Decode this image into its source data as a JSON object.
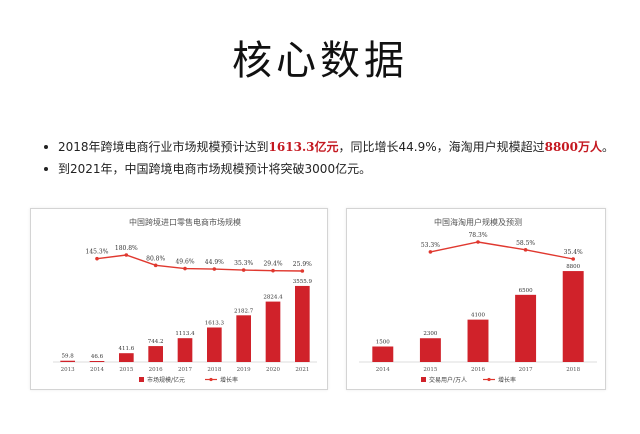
{
  "title": "核心数据",
  "bullets": [
    {
      "parts": [
        {
          "text": "2018年跨境电商行业市场规模预计达到",
          "hl": false
        },
        {
          "text": "1613.3亿元",
          "hl": true
        },
        {
          "text": "，同比增长44.9%，海淘用户规模超过",
          "hl": false
        },
        {
          "text": "8800万人",
          "hl": true
        },
        {
          "text": "。",
          "hl": false
        }
      ]
    },
    {
      "parts": [
        {
          "text": "到2021年，中国跨境电商市场规模预计将突破3000亿元。",
          "hl": false
        }
      ]
    }
  ],
  "colors": {
    "bar": "#d0222a",
    "line": "#e0382f",
    "highlight": "#c41820"
  },
  "chart_data": [
    {
      "type": "bar",
      "title": "中国跨境进口零售电商市场规模",
      "categories": [
        "2013",
        "2014",
        "2015",
        "2016",
        "2017",
        "2018",
        "2019",
        "2020",
        "2021"
      ],
      "series": [
        {
          "name": "市场规模/亿元",
          "kind": "bar",
          "values": [
            59.8,
            46.6,
            411.6,
            744.2,
            1113.4,
            1613.3,
            2182.7,
            2824.4,
            3555.9
          ],
          "labels": [
            "59.8",
            "46.6",
            "411.6",
            "744.2",
            "1113.4",
            "1613.3",
            "2182.7",
            "2824.4",
            "3555.9"
          ]
        },
        {
          "name": "增长率",
          "kind": "line",
          "values": [
            null,
            145.3,
            180.8,
            80.8,
            49.6,
            44.9,
            35.3,
            29.4,
            25.9
          ],
          "labels": [
            "",
            "145.3%",
            "180.8%",
            "80.8%",
            "49.6%",
            "44.9%",
            "35.3%",
            "29.4%",
            "25.9%"
          ]
        }
      ],
      "ylim": [
        0,
        3600
      ],
      "legend": "bottom"
    },
    {
      "type": "bar",
      "title": "中国海淘用户规模及预测",
      "categories": [
        "2014",
        "2015",
        "2016",
        "2017",
        "2018"
      ],
      "series": [
        {
          "name": "交易用户/万人",
          "kind": "bar",
          "values": [
            1500,
            2300,
            4100,
            6500,
            8800
          ],
          "labels": [
            "1500",
            "2300",
            "4100",
            "6500",
            "8800"
          ]
        },
        {
          "name": "增长率",
          "kind": "line",
          "values": [
            null,
            53.3,
            78.3,
            58.5,
            35.4
          ],
          "labels": [
            "",
            "53.3%",
            "78.3%",
            "58.5%",
            "35.4%"
          ]
        }
      ],
      "ylim": [
        0,
        9000
      ],
      "legend": "bottom"
    }
  ]
}
